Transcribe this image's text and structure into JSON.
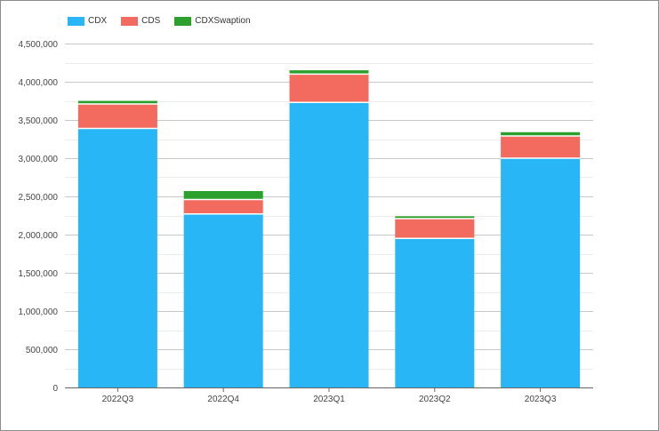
{
  "chart_data": {
    "type": "bar",
    "stacked": true,
    "categories": [
      "2022Q3",
      "2022Q4",
      "2023Q1",
      "2023Q2",
      "2023Q3"
    ],
    "series": [
      {
        "name": "CDX",
        "color": "#29b6f6",
        "values": [
          3390000,
          2270000,
          3730000,
          1950000,
          3000000
        ]
      },
      {
        "name": "CDS",
        "color": "#f26b5e",
        "values": [
          320000,
          190000,
          370000,
          260000,
          290000
        ]
      },
      {
        "name": "CDXSwaption",
        "color": "#2ca02c",
        "values": [
          40000,
          110000,
          50000,
          30000,
          50000
        ]
      }
    ],
    "ylim": [
      0,
      4500000
    ],
    "yticks": [
      "0",
      "500,000",
      "1,000,000",
      "1,500,000",
      "2,000,000",
      "2,500,000",
      "3,000,000",
      "3,500,000",
      "4,000,000",
      "4,500,000"
    ],
    "grid": true,
    "legend_position": "top-left",
    "title": "",
    "xlabel": "",
    "ylabel": ""
  }
}
